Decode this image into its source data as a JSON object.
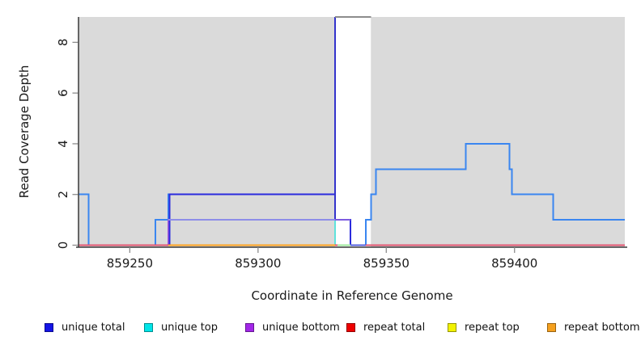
{
  "figure_title": "",
  "y_axis": {
    "label": "Read Coverage Depth",
    "ticks": [
      0,
      2,
      4,
      6,
      8
    ],
    "range": [
      0,
      9
    ]
  },
  "x_axis": {
    "label": "Coordinate in Reference Genome",
    "ticks": [
      859250,
      859300,
      859350,
      859400
    ],
    "range": [
      859230,
      859443
    ]
  },
  "legend": [
    {
      "label": "unique total",
      "color": "#1414E6"
    },
    {
      "label": "unique top",
      "color": "#00E5E8"
    },
    {
      "label": "unique bottom",
      "color": "#A226E8"
    },
    {
      "label": "repeat total",
      "color": "#EE0000"
    },
    {
      "label": "repeat top",
      "color": "#F2F200"
    },
    {
      "label": "repeat bottom",
      "color": "#F5A01E"
    }
  ],
  "chart_data": {
    "type": "line",
    "style": "step-coverage",
    "x_range": [
      859230,
      859443
    ],
    "y_range": [
      0,
      9
    ],
    "xlabel": "Coordinate in Reference Genome",
    "ylabel": "Read Coverage Depth",
    "grid": false,
    "shaded_regions": {
      "color": "#DADADA",
      "x_pairs": [
        [
          859230,
          859330
        ],
        [
          859344,
          859443
        ]
      ]
    },
    "series": [
      {
        "name": "total-coverage-left",
        "color": "#3A86F0",
        "width": 2,
        "points": [
          [
            859230,
            2
          ],
          [
            859234,
            0
          ],
          [
            859260,
            1
          ],
          [
            859265,
            2
          ],
          [
            859330,
            2
          ]
        ]
      },
      {
        "name": "total-coverage-right",
        "color": "#3A86F0",
        "width": 2,
        "points": [
          [
            859342,
            0
          ],
          [
            859342,
            1
          ],
          [
            859344,
            2
          ],
          [
            859346,
            3
          ],
          [
            859381,
            4
          ],
          [
            859398,
            3
          ],
          [
            859399,
            2
          ],
          [
            859415,
            1
          ],
          [
            859443,
            1
          ]
        ]
      },
      {
        "name": "repeat-top",
        "color": "#EFE53C",
        "width": 2,
        "points": [
          [
            859230,
            0
          ],
          [
            859443,
            0
          ]
        ]
      },
      {
        "name": "unique-top",
        "color": "#5FE3DC",
        "width": 2,
        "points": [
          [
            859230,
            0
          ],
          [
            859265,
            1
          ],
          [
            859330,
            0
          ],
          [
            859443,
            0
          ]
        ]
      },
      {
        "name": "unique-bottom",
        "color": "#A35BDB",
        "width": 2,
        "points": [
          [
            859230,
            0
          ],
          [
            859265,
            1
          ],
          [
            859336,
            0
          ],
          [
            859443,
            0
          ]
        ]
      },
      {
        "name": "unique-total",
        "color": "#2B2BDD",
        "width": 2,
        "points": [
          [
            859230,
            0
          ],
          [
            859265.5,
            2
          ],
          [
            859330,
            1
          ],
          [
            859336,
            0
          ],
          [
            859443,
            0
          ]
        ]
      },
      {
        "name": "unique-total-clip-rise",
        "color": "#3333CC",
        "width": 2,
        "points": [
          [
            859330,
            1
          ],
          [
            859330,
            9
          ]
        ]
      },
      {
        "name": "repeat-total",
        "color": "#E25571",
        "width": 2,
        "points": [
          [
            859230,
            0
          ],
          [
            859443,
            0
          ]
        ]
      },
      {
        "name": "repeat-bottom",
        "color": "#FFA320",
        "width": 2,
        "points": [
          [
            859265,
            0
          ],
          [
            859330,
            0
          ]
        ]
      },
      {
        "name": "overlap-top-strands",
        "color": "#9CE89C",
        "width": 2,
        "points": [
          [
            859331,
            0
          ],
          [
            859336,
            0
          ]
        ]
      },
      {
        "name": "overlap-bottom-strands",
        "color": "#5560DD",
        "width": 2,
        "points": [
          [
            859336,
            0
          ],
          [
            859342,
            0
          ]
        ]
      },
      {
        "name": "overlap-unique-depth1",
        "color": "#8D8DE8",
        "width": 2,
        "points": [
          [
            859265,
            1
          ],
          [
            859330,
            1
          ]
        ]
      },
      {
        "name": "unique-bottom-solo",
        "color": "#7D5BE0",
        "width": 2,
        "points": [
          [
            859330,
            1
          ],
          [
            859336,
            1
          ]
        ]
      },
      {
        "name": "clipped-offscale-segment",
        "color": "#8C8C8C",
        "width": 2.2,
        "points": [
          [
            859330,
            9
          ],
          [
            859344,
            9
          ]
        ]
      }
    ]
  }
}
